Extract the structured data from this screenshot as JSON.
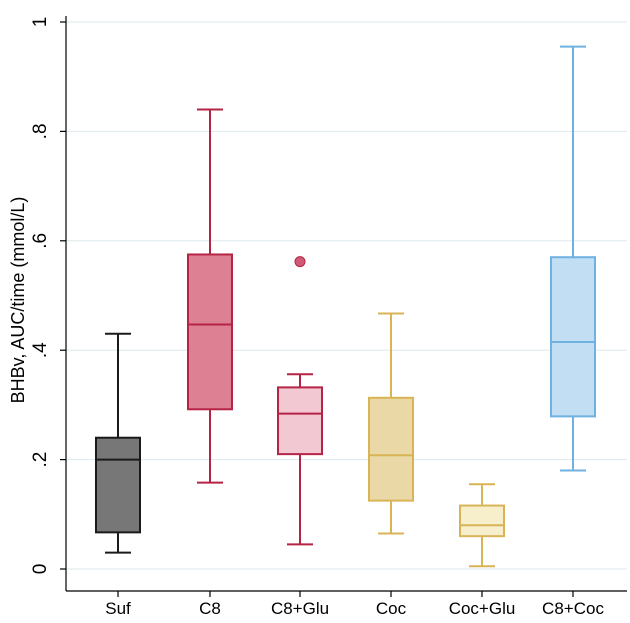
{
  "chart_data": {
    "type": "boxplot",
    "title": "",
    "xlabel": "",
    "ylabel": "BHBv, AUC/time (mmol/L)",
    "ylim": [
      0,
      1
    ],
    "yticks": [
      0,
      0.2,
      0.4,
      0.6,
      0.8,
      1
    ],
    "ytick_labels": [
      "0",
      ".2",
      ".4",
      ".6",
      ".8",
      "1"
    ],
    "grid": "horizontal",
    "categories": [
      "Suf",
      "C8",
      "C8+Glu",
      "Coc",
      "Coc+Glu",
      "C8+Coc"
    ],
    "boxes": [
      {
        "name": "Suf",
        "whisker_low": 0.03,
        "q1": 0.067,
        "median": 0.2,
        "q3": 0.24,
        "whisker_high": 0.43,
        "outliers": [],
        "fill": "#777777",
        "stroke": "#1a1a1a"
      },
      {
        "name": "C8",
        "whisker_low": 0.158,
        "q1": 0.292,
        "median": 0.447,
        "q3": 0.575,
        "whisker_high": 0.84,
        "outliers": [],
        "fill": "#de8094",
        "stroke": "#b52345"
      },
      {
        "name": "C8+Glu",
        "whisker_low": 0.045,
        "q1": 0.21,
        "median": 0.284,
        "q3": 0.332,
        "whisker_high": 0.356,
        "outliers": [
          0.562
        ],
        "fill": "#f2c9d3",
        "stroke": "#b52345"
      },
      {
        "name": "Coc",
        "whisker_low": 0.065,
        "q1": 0.125,
        "median": 0.208,
        "q3": 0.313,
        "whisker_high": 0.467,
        "outliers": [],
        "fill": "#ead9a6",
        "stroke": "#d9b456"
      },
      {
        "name": "Coc+Glu",
        "whisker_low": 0.005,
        "q1": 0.06,
        "median": 0.08,
        "q3": 0.116,
        "whisker_high": 0.155,
        "outliers": [],
        "fill": "#f7efcc",
        "stroke": "#d9b456"
      },
      {
        "name": "C8+Coc",
        "whisker_low": 0.18,
        "q1": 0.279,
        "median": 0.415,
        "q3": 0.57,
        "whisker_high": 0.955,
        "outliers": [],
        "fill": "#c2def2",
        "stroke": "#6fb1e0"
      }
    ]
  }
}
